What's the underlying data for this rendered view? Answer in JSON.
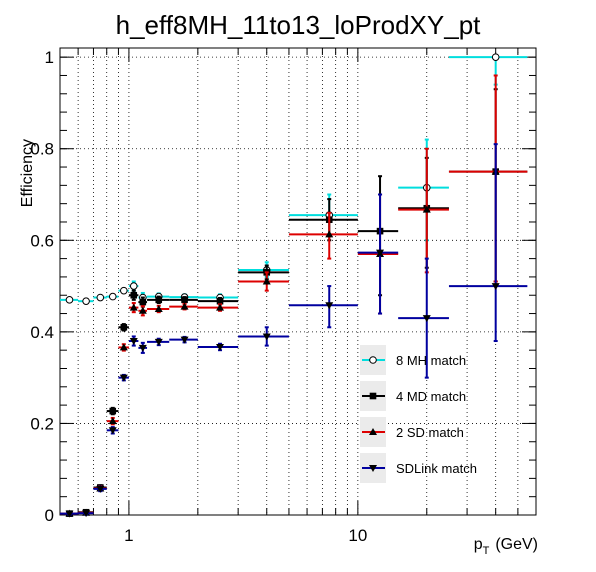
{
  "chart_data": {
    "type": "scatter",
    "title": "h_eff8MH_11to13_loProdXY_pt",
    "xlabel": "p_T (GeV)",
    "xlabel_main": "p",
    "xlabel_sub": "T",
    "xlabel_unit": "(GeV)",
    "ylabel": "Efficiency",
    "xscale": "log",
    "xlim": [
      0.5,
      60
    ],
    "ylim": [
      0,
      1.02
    ],
    "grid": true,
    "legend_position": "bottom-right",
    "x_tick_labels": [
      {
        "value": 1,
        "label": "1"
      },
      {
        "value": 10,
        "label": "10"
      }
    ],
    "y_tick_labels": [
      {
        "value": 0,
        "label": "0"
      },
      {
        "value": 0.2,
        "label": "0.2"
      },
      {
        "value": 0.4,
        "label": "0.4"
      },
      {
        "value": 0.6,
        "label": "0.6"
      },
      {
        "value": 0.8,
        "label": "0.8"
      },
      {
        "value": 1,
        "label": "1"
      }
    ],
    "series": [
      {
        "name": "8 MH match",
        "color": "#00dede",
        "marker": "open-circle",
        "points": [
          {
            "x": 0.55,
            "xlo": 0.5,
            "xhi": 0.6,
            "y": 0.47,
            "ylo": 0.468,
            "yhi": 0.472
          },
          {
            "x": 0.65,
            "xlo": 0.6,
            "xhi": 0.7,
            "y": 0.467,
            "ylo": 0.465,
            "yhi": 0.469
          },
          {
            "x": 0.75,
            "xlo": 0.7,
            "xhi": 0.8,
            "y": 0.475,
            "ylo": 0.473,
            "yhi": 0.477
          },
          {
            "x": 0.85,
            "xlo": 0.8,
            "xhi": 0.9,
            "y": 0.477,
            "ylo": 0.475,
            "yhi": 0.479
          },
          {
            "x": 0.95,
            "xlo": 0.9,
            "xhi": 1.0,
            "y": 0.49,
            "ylo": 0.487,
            "yhi": 0.493
          },
          {
            "x": 1.05,
            "xlo": 1.0,
            "xhi": 1.1,
            "y": 0.5,
            "ylo": 0.49,
            "yhi": 0.51
          },
          {
            "x": 1.15,
            "xlo": 1.1,
            "xhi": 1.2,
            "y": 0.475,
            "ylo": 0.465,
            "yhi": 0.485
          },
          {
            "x": 1.35,
            "xlo": 1.2,
            "xhi": 1.5,
            "y": 0.477,
            "ylo": 0.47,
            "yhi": 0.484
          },
          {
            "x": 1.75,
            "xlo": 1.5,
            "xhi": 2.0,
            "y": 0.476,
            "ylo": 0.47,
            "yhi": 0.482
          },
          {
            "x": 2.5,
            "xlo": 2.0,
            "xhi": 3.0,
            "y": 0.475,
            "ylo": 0.468,
            "yhi": 0.482
          },
          {
            "x": 4.0,
            "xlo": 3.0,
            "xhi": 5.0,
            "y": 0.535,
            "ylo": 0.52,
            "yhi": 0.552
          },
          {
            "x": 7.5,
            "xlo": 5.0,
            "xhi": 10.0,
            "y": 0.655,
            "ylo": 0.61,
            "yhi": 0.7
          },
          {
            "x": 20.0,
            "xlo": 15.0,
            "xhi": 25.0,
            "y": 0.715,
            "ylo": 0.6,
            "yhi": 0.82
          },
          {
            "x": 40.0,
            "xlo": 25.0,
            "xhi": 55.0,
            "y": 1.0,
            "ylo": 0.94,
            "yhi": 1.0
          }
        ]
      },
      {
        "name": "4 MD match",
        "color": "#000000",
        "marker": "filled-square",
        "points": [
          {
            "x": 0.55,
            "xlo": 0.5,
            "xhi": 0.6,
            "y": 0.003,
            "ylo": 0.0,
            "yhi": 0.006
          },
          {
            "x": 0.65,
            "xlo": 0.6,
            "xhi": 0.7,
            "y": 0.006,
            "ylo": 0.003,
            "yhi": 0.009
          },
          {
            "x": 0.75,
            "xlo": 0.7,
            "xhi": 0.8,
            "y": 0.06,
            "ylo": 0.055,
            "yhi": 0.065
          },
          {
            "x": 0.85,
            "xlo": 0.8,
            "xhi": 0.9,
            "y": 0.227,
            "ylo": 0.22,
            "yhi": 0.234
          },
          {
            "x": 0.95,
            "xlo": 0.9,
            "xhi": 1.0,
            "y": 0.41,
            "ylo": 0.403,
            "yhi": 0.417
          },
          {
            "x": 1.05,
            "xlo": 1.0,
            "xhi": 1.1,
            "y": 0.48,
            "ylo": 0.47,
            "yhi": 0.49
          },
          {
            "x": 1.15,
            "xlo": 1.1,
            "xhi": 1.2,
            "y": 0.465,
            "ylo": 0.455,
            "yhi": 0.475
          },
          {
            "x": 1.35,
            "xlo": 1.2,
            "xhi": 1.5,
            "y": 0.47,
            "ylo": 0.463,
            "yhi": 0.477
          },
          {
            "x": 1.75,
            "xlo": 1.5,
            "xhi": 2.0,
            "y": 0.47,
            "ylo": 0.464,
            "yhi": 0.476
          },
          {
            "x": 2.5,
            "xlo": 2.0,
            "xhi": 3.0,
            "y": 0.467,
            "ylo": 0.46,
            "yhi": 0.474
          },
          {
            "x": 4.0,
            "xlo": 3.0,
            "xhi": 5.0,
            "y": 0.53,
            "ylo": 0.515,
            "yhi": 0.545
          },
          {
            "x": 7.5,
            "xlo": 5.0,
            "xhi": 10.0,
            "y": 0.645,
            "ylo": 0.6,
            "yhi": 0.69
          },
          {
            "x": 12.5,
            "xlo": 10.0,
            "xhi": 15.0,
            "y": 0.62,
            "ylo": 0.48,
            "yhi": 0.74
          },
          {
            "x": 20.0,
            "xlo": 15.0,
            "xhi": 25.0,
            "y": 0.67,
            "ylo": 0.54,
            "yhi": 0.78
          },
          {
            "x": 40.0,
            "xlo": 25.0,
            "xhi": 55.0,
            "y": 0.75,
            "ylo": 0.51,
            "yhi": 0.93
          }
        ]
      },
      {
        "name": "2 SD match",
        "color": "#dd0000",
        "marker": "filled-triangle-up",
        "points": [
          {
            "x": 0.55,
            "xlo": 0.5,
            "xhi": 0.6,
            "y": 0.003,
            "ylo": 0.0,
            "yhi": 0.006
          },
          {
            "x": 0.65,
            "xlo": 0.6,
            "xhi": 0.7,
            "y": 0.005,
            "ylo": 0.002,
            "yhi": 0.008
          },
          {
            "x": 0.75,
            "xlo": 0.7,
            "xhi": 0.8,
            "y": 0.058,
            "ylo": 0.053,
            "yhi": 0.063
          },
          {
            "x": 0.85,
            "xlo": 0.8,
            "xhi": 0.9,
            "y": 0.205,
            "ylo": 0.198,
            "yhi": 0.212
          },
          {
            "x": 0.95,
            "xlo": 0.9,
            "xhi": 1.0,
            "y": 0.366,
            "ylo": 0.359,
            "yhi": 0.373
          },
          {
            "x": 1.05,
            "xlo": 1.0,
            "xhi": 1.1,
            "y": 0.453,
            "ylo": 0.443,
            "yhi": 0.463
          },
          {
            "x": 1.15,
            "xlo": 1.1,
            "xhi": 1.2,
            "y": 0.446,
            "ylo": 0.436,
            "yhi": 0.456
          },
          {
            "x": 1.35,
            "xlo": 1.2,
            "xhi": 1.5,
            "y": 0.45,
            "ylo": 0.443,
            "yhi": 0.457
          },
          {
            "x": 1.75,
            "xlo": 1.5,
            "xhi": 2.0,
            "y": 0.455,
            "ylo": 0.449,
            "yhi": 0.461
          },
          {
            "x": 2.5,
            "xlo": 2.0,
            "xhi": 3.0,
            "y": 0.453,
            "ylo": 0.446,
            "yhi": 0.46
          },
          {
            "x": 4.0,
            "xlo": 3.0,
            "xhi": 5.0,
            "y": 0.51,
            "ylo": 0.49,
            "yhi": 0.53
          },
          {
            "x": 7.5,
            "xlo": 5.0,
            "xhi": 10.0,
            "y": 0.613,
            "ylo": 0.56,
            "yhi": 0.66
          },
          {
            "x": 12.5,
            "xlo": 10.0,
            "xhi": 15.0,
            "y": 0.57,
            "ylo": 0.44,
            "yhi": 0.7
          },
          {
            "x": 20.0,
            "xlo": 15.0,
            "xhi": 25.0,
            "y": 0.667,
            "ylo": 0.53,
            "yhi": 0.8
          },
          {
            "x": 40.0,
            "xlo": 25.0,
            "xhi": 55.0,
            "y": 0.75,
            "ylo": 0.51,
            "yhi": 0.96
          }
        ]
      },
      {
        "name": "SDLink match",
        "color": "#00009f",
        "marker": "filled-triangle-down",
        "points": [
          {
            "x": 0.55,
            "xlo": 0.5,
            "xhi": 0.6,
            "y": 0.003,
            "ylo": 0.0,
            "yhi": 0.006
          },
          {
            "x": 0.65,
            "xlo": 0.6,
            "xhi": 0.7,
            "y": 0.004,
            "ylo": 0.001,
            "yhi": 0.007
          },
          {
            "x": 0.75,
            "xlo": 0.7,
            "xhi": 0.8,
            "y": 0.057,
            "ylo": 0.052,
            "yhi": 0.062
          },
          {
            "x": 0.85,
            "xlo": 0.8,
            "xhi": 0.9,
            "y": 0.185,
            "ylo": 0.178,
            "yhi": 0.192
          },
          {
            "x": 0.95,
            "xlo": 0.9,
            "xhi": 1.0,
            "y": 0.3,
            "ylo": 0.294,
            "yhi": 0.306
          },
          {
            "x": 1.05,
            "xlo": 1.0,
            "xhi": 1.1,
            "y": 0.38,
            "ylo": 0.37,
            "yhi": 0.39
          },
          {
            "x": 1.15,
            "xlo": 1.1,
            "xhi": 1.2,
            "y": 0.365,
            "ylo": 0.354,
            "yhi": 0.376
          },
          {
            "x": 1.35,
            "xlo": 1.2,
            "xhi": 1.5,
            "y": 0.378,
            "ylo": 0.371,
            "yhi": 0.385
          },
          {
            "x": 1.75,
            "xlo": 1.5,
            "xhi": 2.0,
            "y": 0.383,
            "ylo": 0.377,
            "yhi": 0.389
          },
          {
            "x": 2.5,
            "xlo": 2.0,
            "xhi": 3.0,
            "y": 0.367,
            "ylo": 0.36,
            "yhi": 0.374
          },
          {
            "x": 4.0,
            "xlo": 3.0,
            "xhi": 5.0,
            "y": 0.39,
            "ylo": 0.37,
            "yhi": 0.41
          },
          {
            "x": 7.5,
            "xlo": 5.0,
            "xhi": 10.0,
            "y": 0.458,
            "ylo": 0.41,
            "yhi": 0.5
          },
          {
            "x": 12.5,
            "xlo": 10.0,
            "xhi": 15.0,
            "y": 0.573,
            "ylo": 0.44,
            "yhi": 0.7
          },
          {
            "x": 20.0,
            "xlo": 15.0,
            "xhi": 25.0,
            "y": 0.43,
            "ylo": 0.3,
            "yhi": 0.56
          },
          {
            "x": 40.0,
            "xlo": 25.0,
            "xhi": 55.0,
            "y": 0.5,
            "ylo": 0.38,
            "yhi": 0.81
          }
        ]
      }
    ]
  }
}
